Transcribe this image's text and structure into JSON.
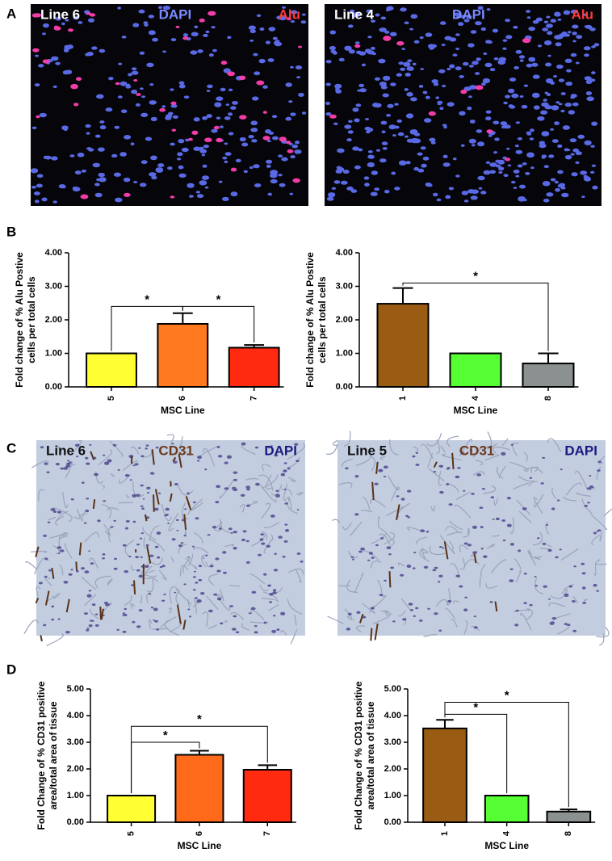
{
  "panel_labels": [
    "A",
    "B",
    "C",
    "D"
  ],
  "images": [
    {
      "labels": [
        "Line 6",
        "DAPI",
        "Alu"
      ]
    },
    {
      "labels": [
        "Line 4",
        "DAPI",
        "Alu"
      ]
    },
    {
      "labels": [
        "Line 6",
        "CD31",
        "DAPI"
      ]
    },
    {
      "labels": [
        "Line 5",
        "CD31",
        "DAPI"
      ]
    }
  ],
  "chart_data": [
    {
      "type": "bar",
      "categories": [
        "5",
        "6",
        "7"
      ],
      "values": [
        1.0,
        1.88,
        1.17
      ],
      "errors": [
        0,
        0.32,
        0.08
      ],
      "colors": [
        "#ffff33",
        "#ff7a1f",
        "#ff2a10"
      ],
      "ylim": [
        0,
        4
      ],
      "yticks": [
        {
          "value": 0,
          "label": "0.00"
        },
        {
          "value": 1,
          "label": "1.00"
        },
        {
          "value": 2,
          "label": "2.00"
        },
        {
          "value": 3,
          "label": "3.00"
        },
        {
          "value": 4,
          "label": "4.00"
        }
      ],
      "ylabel": [
        "Fold change of % Alu Postive",
        "cells per total cells"
      ],
      "xlabel": "MSC Line",
      "significance": [
        {
          "pair": [
            "5",
            "6"
          ],
          "y": 2.4,
          "label": "*"
        },
        {
          "pair": [
            "6",
            "7"
          ],
          "y": 2.4,
          "label": "*"
        }
      ]
    },
    {
      "type": "bar",
      "categories": [
        "1",
        "4",
        "8"
      ],
      "values": [
        2.48,
        1.0,
        0.7
      ],
      "errors": [
        0.47,
        0,
        0.3
      ],
      "colors": [
        "#9a5c12",
        "#55ff33",
        "#8a9190"
      ],
      "ylim": [
        0,
        4
      ],
      "yticks": [
        {
          "value": 0,
          "label": "0.00"
        },
        {
          "value": 1,
          "label": "1.00"
        },
        {
          "value": 2,
          "label": "2.00"
        },
        {
          "value": 3,
          "label": "3.00"
        },
        {
          "value": 4,
          "label": "4.00"
        }
      ],
      "ylabel": [
        "Fold change of % Alu Postive",
        "cells per total cells"
      ],
      "xlabel": "MSC Line",
      "significance": [
        {
          "pair": [
            "1",
            "8"
          ],
          "y": 3.1,
          "label": "*"
        }
      ]
    },
    {
      "type": "bar",
      "categories": [
        "5",
        "6",
        "7"
      ],
      "values": [
        1.0,
        2.53,
        1.97
      ],
      "errors": [
        0,
        0.15,
        0.17
      ],
      "colors": [
        "#ffff33",
        "#ff6a1a",
        "#ff2a10"
      ],
      "ylim": [
        0,
        5
      ],
      "yticks": [
        {
          "value": 0,
          "label": "0.00"
        },
        {
          "value": 1,
          "label": "1.00"
        },
        {
          "value": 2,
          "label": "2.00"
        },
        {
          "value": 3,
          "label": "3.00"
        },
        {
          "value": 4,
          "label": "4.00"
        },
        {
          "value": 5,
          "label": "5.00"
        }
      ],
      "ylabel": [
        "Fold Change of % CD31 positive",
        "area/total area of tissue"
      ],
      "xlabel": "MSC Line",
      "significance": [
        {
          "pair": [
            "5",
            "6"
          ],
          "y": 3.0,
          "label": "*"
        },
        {
          "pair": [
            "5",
            "7"
          ],
          "y": 3.6,
          "label": "*"
        }
      ]
    },
    {
      "type": "bar",
      "categories": [
        "1",
        "4",
        "8"
      ],
      "values": [
        3.52,
        1.0,
        0.4
      ],
      "errors": [
        0.32,
        0,
        0.08
      ],
      "colors": [
        "#9a5c12",
        "#55ff33",
        "#8a9190"
      ],
      "ylim": [
        0,
        5
      ],
      "yticks": [
        {
          "value": 0,
          "label": "0.00"
        },
        {
          "value": 1,
          "label": "1.00"
        },
        {
          "value": 2,
          "label": "2.00"
        },
        {
          "value": 3,
          "label": "3.00"
        },
        {
          "value": 4,
          "label": "4.00"
        },
        {
          "value": 5,
          "label": "5.00"
        }
      ],
      "ylabel": [
        "Fold Change of % CD31 positive",
        "area/total area of tissue"
      ],
      "xlabel": "MSC Line",
      "significance": [
        {
          "pair": [
            "1",
            "4"
          ],
          "y": 4.05,
          "label": "*"
        },
        {
          "pair": [
            "1",
            "8"
          ],
          "y": 4.5,
          "label": "*"
        }
      ]
    }
  ]
}
